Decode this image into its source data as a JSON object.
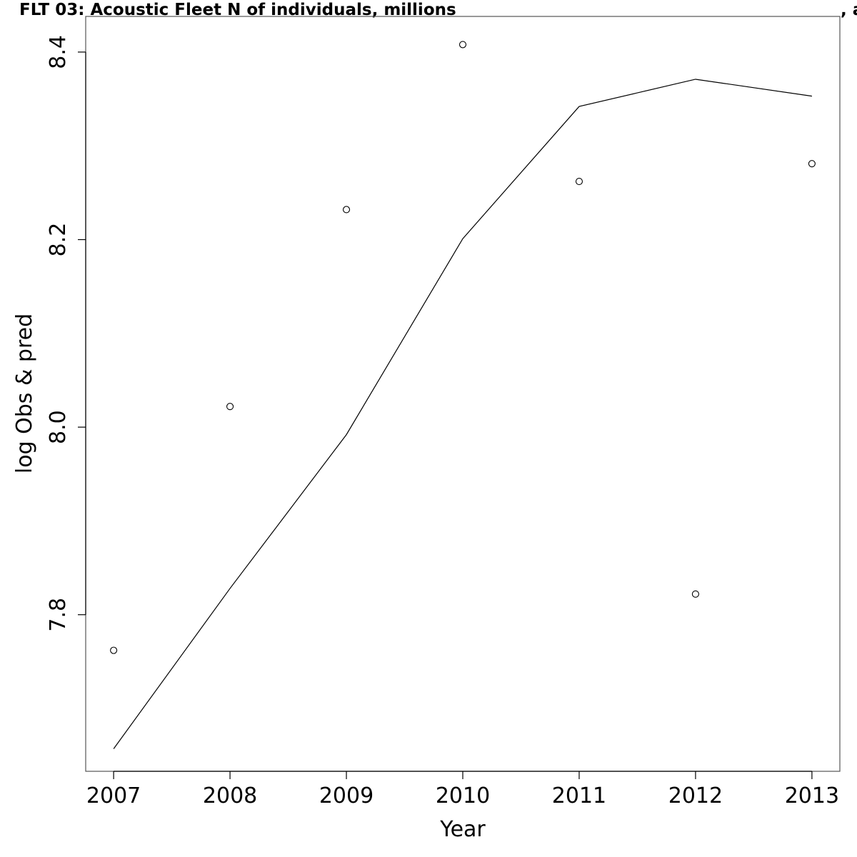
{
  "chart_data": {
    "type": "line",
    "title": "FLT 03: Acoustic Fleet   N of individuals, millions",
    "title_suffix": ", a",
    "xlabel": "Year",
    "ylabel": "log Obs & pred",
    "x": [
      2007,
      2008,
      2009,
      2010,
      2011,
      2012,
      2013
    ],
    "xlim": [
      2006.76,
      2013.24
    ],
    "ylim": [
      7.633,
      8.438
    ],
    "x_ticks": [
      2007,
      2008,
      2009,
      2010,
      2011,
      2012,
      2013
    ],
    "y_ticks": [
      7.8,
      8.0,
      8.2,
      8.4
    ],
    "grid": false,
    "series": [
      {
        "kind": "points",
        "values": [
          7.762,
          8.022,
          8.232,
          8.408,
          8.262,
          7.822,
          8.281
        ]
      },
      {
        "kind": "line",
        "values": [
          7.657,
          7.828,
          7.992,
          8.201,
          8.342,
          8.371,
          8.353
        ]
      }
    ],
    "colors": {
      "line": "#000000",
      "points": "#000000",
      "axis": "#000000"
    }
  }
}
